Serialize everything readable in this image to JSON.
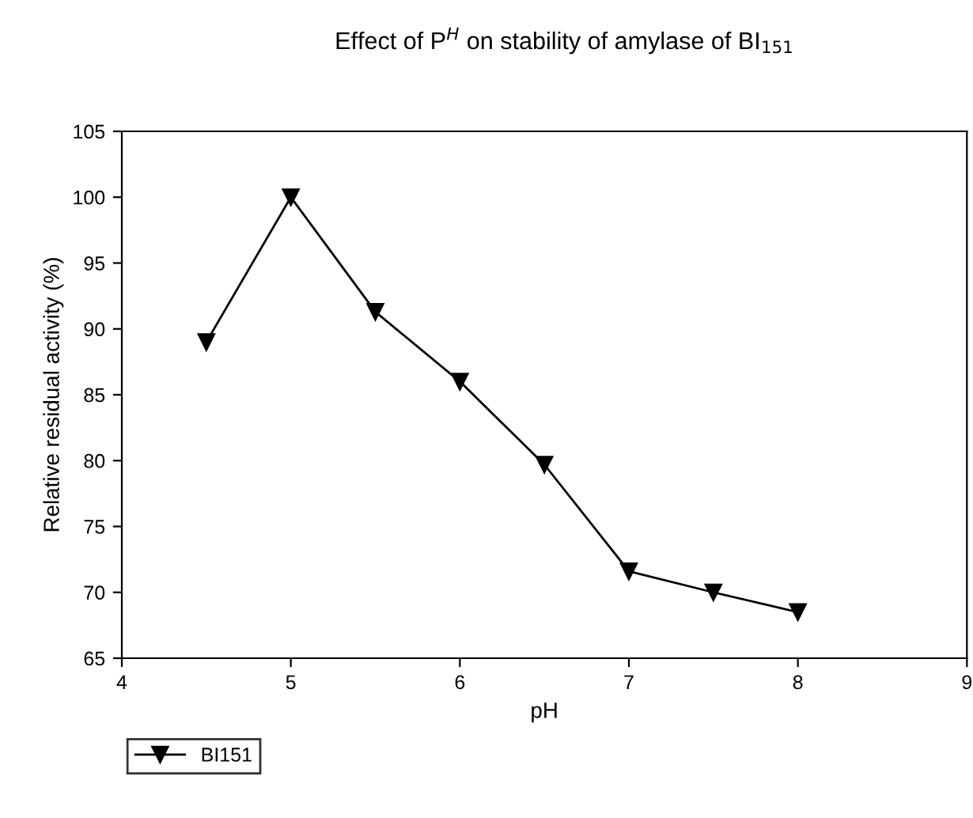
{
  "chart_data": {
    "type": "line",
    "title": "Effect of P$^{H}$ on stability of amylase of BI$_{151}$",
    "xlabel": "pH",
    "ylabel": "Relative residual activity (%)",
    "x": [
      4.5,
      5,
      5.5,
      6,
      6.5,
      7,
      7.5,
      8
    ],
    "series": [
      {
        "name": "BI151",
        "color": "#000000",
        "values": [
          89,
          100,
          91.3,
          86,
          79.7,
          71.6,
          70,
          68.5
        ]
      }
    ],
    "xlim": [
      4,
      9
    ],
    "xticks": [
      4,
      5,
      6,
      7,
      8,
      9
    ],
    "ylim": [
      65,
      105
    ],
    "yticks": [
      65,
      70,
      75,
      80,
      85,
      90,
      95,
      100,
      105
    ],
    "marker": "triangle",
    "line_style": "solid",
    "grid": false,
    "legend": "bottom left"
  }
}
